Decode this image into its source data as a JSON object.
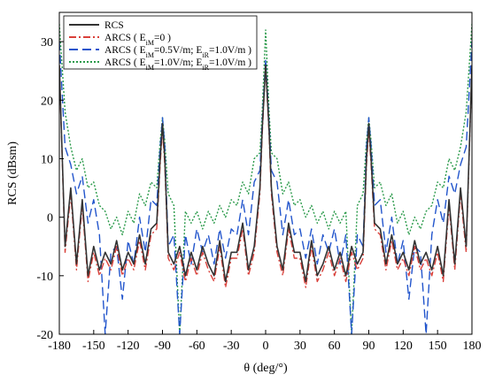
{
  "chart_data": {
    "type": "line",
    "xlabel": "θ (deg/°)",
    "ylabel": "RCS (dBsm)",
    "xlim": [
      -180,
      180
    ],
    "ylim": [
      -20,
      35
    ],
    "xticks": [
      -180,
      -150,
      -120,
      -90,
      -60,
      -30,
      0,
      30,
      60,
      90,
      120,
      150,
      180
    ],
    "yticks": [
      -20,
      -10,
      0,
      10,
      20,
      30
    ],
    "grid": false,
    "legend_position": "top-left",
    "legend": [
      {
        "label": "RCS",
        "color": "#333333",
        "style": "solid"
      },
      {
        "label_prefix": "ARCS ( E",
        "sub1": "iM",
        "label_mid": "=0 )",
        "color": "#d9403a",
        "style": "dashdot"
      },
      {
        "label_prefix": "ARCS ( E",
        "sub1": "iM",
        "label_mid": "=0.5V/m; E",
        "sub2": "iR",
        "label_suffix": "=1.0V/m )",
        "color": "#2255cc",
        "style": "dashed"
      },
      {
        "label_prefix": "ARCS ( E",
        "sub1": "iM",
        "label_mid": "=1.0V/m; E",
        "sub2": "iR",
        "label_suffix": "=1.0V/m )",
        "color": "#2a9a4a",
        "style": "dotted"
      }
    ],
    "series": [
      {
        "name": "RCS",
        "color": "#333333",
        "x": [
          -180,
          -175,
          -170,
          -165,
          -160,
          -155,
          -150,
          -145,
          -140,
          -135,
          -130,
          -125,
          -120,
          -115,
          -110,
          -105,
          -100,
          -95,
          -92,
          -90,
          -88,
          -85,
          -80,
          -75,
          -70,
          -65,
          -60,
          -55,
          -50,
          -45,
          -40,
          -35,
          -30,
          -25,
          -20,
          -15,
          -10,
          -5,
          -3,
          0,
          3,
          5,
          10,
          15,
          20,
          25,
          30,
          35,
          40,
          45,
          50,
          55,
          60,
          65,
          70,
          75,
          80,
          85,
          88,
          90,
          92,
          95,
          100,
          105,
          110,
          115,
          120,
          125,
          130,
          135,
          140,
          145,
          150,
          155,
          160,
          165,
          170,
          175,
          180
        ],
        "y": [
          26,
          -5,
          5,
          -8,
          3,
          -10,
          -5,
          -9,
          -6,
          -8,
          -4,
          -9,
          -6,
          -8,
          -3,
          -8,
          -2,
          -1,
          10,
          16,
          10,
          -6,
          -8,
          -5,
          -10,
          -6,
          -9,
          -5,
          -8,
          -10,
          -4,
          -11,
          -6,
          -6,
          -1,
          -9,
          -5,
          5,
          15,
          26,
          15,
          5,
          -5,
          -9,
          -1,
          -6,
          -6,
          -11,
          -4,
          -10,
          -8,
          -5,
          -9,
          -6,
          -10,
          -5,
          -8,
          -6,
          10,
          16,
          10,
          -1,
          -2,
          -8,
          -3,
          -8,
          -6,
          -9,
          -4,
          -8,
          -6,
          -9,
          -5,
          -10,
          3,
          -8,
          5,
          -5,
          26
        ]
      },
      {
        "name": "ARCS ( EiM=0 )",
        "color": "#d9403a",
        "x": [
          -180,
          -175,
          -170,
          -165,
          -160,
          -155,
          -150,
          -145,
          -140,
          -135,
          -130,
          -125,
          -120,
          -115,
          -110,
          -105,
          -100,
          -95,
          -92,
          -90,
          -88,
          -85,
          -80,
          -75,
          -70,
          -65,
          -60,
          -55,
          -50,
          -45,
          -40,
          -35,
          -30,
          -25,
          -20,
          -15,
          -10,
          -5,
          -3,
          0,
          3,
          5,
          10,
          15,
          20,
          25,
          30,
          35,
          40,
          45,
          50,
          55,
          60,
          65,
          70,
          75,
          80,
          85,
          88,
          90,
          92,
          95,
          100,
          105,
          110,
          115,
          120,
          125,
          130,
          135,
          140,
          145,
          150,
          155,
          160,
          165,
          170,
          175,
          180
        ],
        "y": [
          26,
          -6,
          4,
          -9,
          2,
          -11,
          -6,
          -10,
          -7,
          -9,
          -5,
          -10,
          -7,
          -9,
          -4,
          -9,
          -3,
          -2,
          9,
          15,
          9,
          -7,
          -9,
          -6,
          -11,
          -7,
          -10,
          -6,
          -9,
          -11,
          -5,
          -12,
          -7,
          -7,
          -2,
          -10,
          -6,
          4,
          14,
          26,
          14,
          4,
          -6,
          -10,
          -2,
          -7,
          -7,
          -12,
          -5,
          -11,
          -9,
          -6,
          -10,
          -7,
          -11,
          -6,
          -9,
          -7,
          9,
          15,
          9,
          -2,
          -3,
          -9,
          -4,
          -9,
          -7,
          -10,
          -5,
          -9,
          -7,
          -10,
          -6,
          -11,
          2,
          -9,
          4,
          -6,
          26
        ]
      },
      {
        "name": "ARCS ( EiM=0.5V/m; EiR=1.0V/m )",
        "color": "#2255cc",
        "x": [
          -180,
          -175,
          -170,
          -165,
          -160,
          -155,
          -150,
          -145,
          -140,
          -135,
          -130,
          -125,
          -120,
          -115,
          -110,
          -105,
          -100,
          -95,
          -92,
          -90,
          -88,
          -85,
          -80,
          -75,
          -70,
          -65,
          -60,
          -55,
          -50,
          -45,
          -40,
          -35,
          -30,
          -25,
          -20,
          -15,
          -10,
          -5,
          -3,
          0,
          3,
          5,
          10,
          15,
          20,
          25,
          30,
          35,
          40,
          45,
          50,
          55,
          60,
          65,
          70,
          75,
          80,
          85,
          88,
          90,
          92,
          95,
          100,
          105,
          110,
          115,
          120,
          125,
          130,
          135,
          140,
          145,
          150,
          155,
          160,
          165,
          170,
          175,
          180
        ],
        "y": [
          30,
          12,
          9,
          4,
          7,
          -1,
          3,
          -3,
          -20,
          -6,
          -5,
          -14,
          -4,
          -8,
          0,
          -6,
          3,
          2,
          12,
          17,
          12,
          -5,
          -3,
          -20,
          -3,
          -8,
          -2,
          -6,
          -3,
          -8,
          -2,
          -7,
          -2,
          -3,
          3,
          -3,
          6,
          8,
          16,
          27,
          16,
          8,
          6,
          -3,
          3,
          -3,
          -2,
          -7,
          -2,
          -8,
          -3,
          -6,
          -2,
          -8,
          -3,
          -20,
          -3,
          -5,
          12,
          17,
          12,
          2,
          3,
          -6,
          0,
          -8,
          -4,
          -14,
          -5,
          -6,
          -20,
          -3,
          3,
          -1,
          7,
          4,
          9,
          12,
          30
        ]
      },
      {
        "name": "ARCS ( EiM=1.0V/m; EiR=1.0V/m )",
        "color": "#2a9a4a",
        "x": [
          -180,
          -175,
          -170,
          -165,
          -160,
          -155,
          -150,
          -145,
          -140,
          -135,
          -130,
          -125,
          -120,
          -115,
          -110,
          -105,
          -100,
          -95,
          -92,
          -90,
          -88,
          -85,
          -80,
          -75,
          -70,
          -65,
          -60,
          -55,
          -50,
          -45,
          -40,
          -35,
          -30,
          -25,
          -20,
          -15,
          -10,
          -5,
          -3,
          0,
          3,
          5,
          10,
          15,
          20,
          25,
          30,
          35,
          40,
          45,
          50,
          55,
          60,
          65,
          70,
          75,
          80,
          85,
          88,
          90,
          92,
          95,
          100,
          105,
          110,
          115,
          120,
          125,
          130,
          135,
          140,
          145,
          150,
          155,
          160,
          165,
          170,
          175,
          180
        ],
        "y": [
          33,
          18,
          12,
          8,
          10,
          5,
          6,
          2,
          1,
          -2,
          0,
          -3,
          1,
          -1,
          4,
          2,
          6,
          5,
          13,
          17,
          13,
          4,
          2,
          -20,
          1,
          -1,
          1,
          -2,
          1,
          -1,
          2,
          0,
          3,
          2,
          6,
          4,
          10,
          11,
          18,
          32,
          18,
          11,
          10,
          4,
          6,
          2,
          3,
          0,
          2,
          -1,
          1,
          -2,
          1,
          -1,
          1,
          -20,
          2,
          4,
          13,
          17,
          13,
          5,
          6,
          2,
          4,
          -1,
          1,
          -3,
          0,
          -2,
          1,
          2,
          6,
          5,
          10,
          8,
          12,
          18,
          33
        ]
      }
    ]
  }
}
